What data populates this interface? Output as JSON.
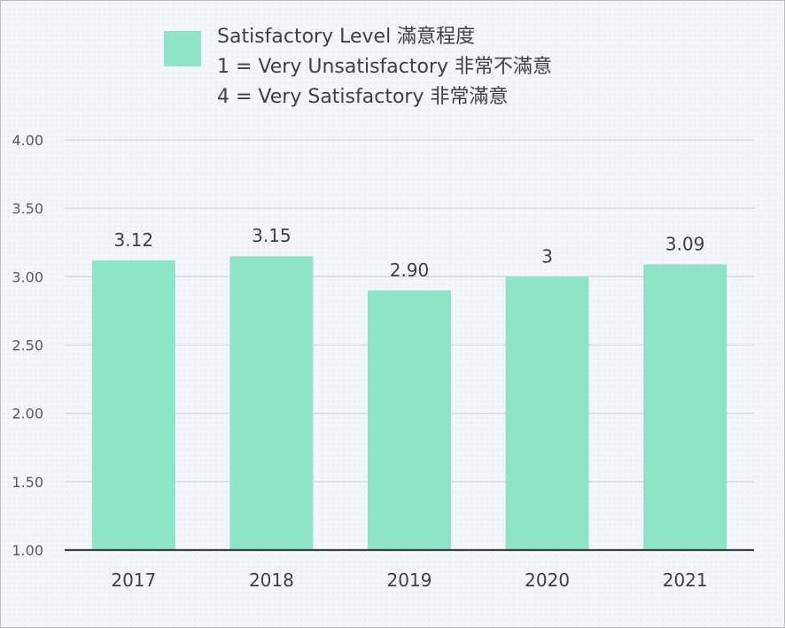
{
  "legend": {
    "line1": "Satisfactory Level 滿意程度",
    "line2": "1 = Very Unsatisfactory 非常不滿意",
    "line3": "4 = Very Satisfactory 非常滿意"
  },
  "colors": {
    "bar": "#8fe3c6",
    "grid": "#d4d6dc",
    "axis": "#3f3f3f"
  },
  "chart_data": {
    "type": "bar",
    "categories": [
      "2017",
      "2018",
      "2019",
      "2020",
      "2021"
    ],
    "series": [
      {
        "name": "Satisfactory Level 滿意程度",
        "values": [
          3.12,
          3.15,
          2.9,
          3,
          3.09
        ],
        "labels": [
          "3.12",
          "3.15",
          "2.90",
          "3",
          "3.09"
        ]
      }
    ],
    "yticks": [
      "1.00",
      "1.50",
      "2.00",
      "2.50",
      "3.00",
      "3.50",
      "4.00"
    ],
    "ylim": [
      1,
      4
    ],
    "title": "",
    "xlabel": "",
    "ylabel": "",
    "grid": true,
    "legend_position": "top"
  }
}
